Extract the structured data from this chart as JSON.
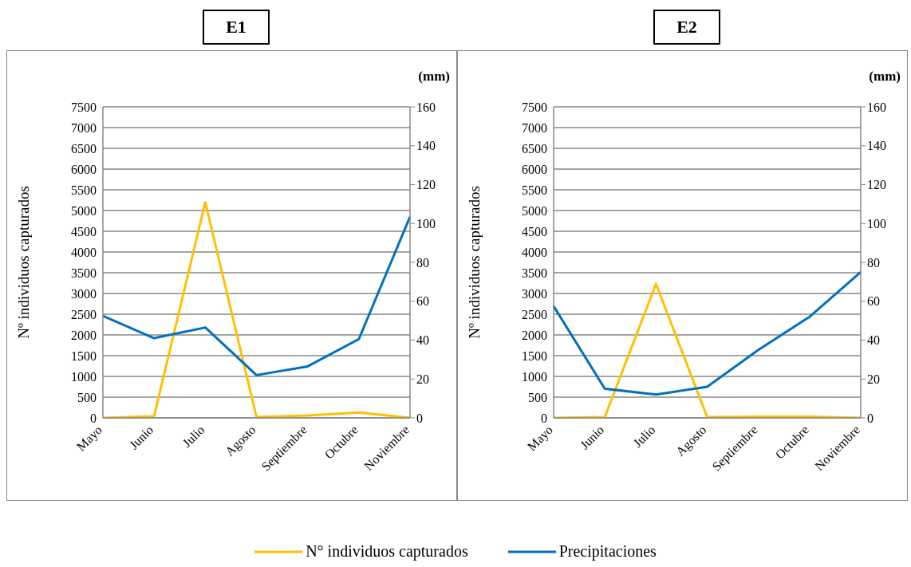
{
  "chart_data": [
    {
      "type": "line",
      "title": "E1",
      "ylabel": "Nº individuos capturados",
      "y2label": "(mm)",
      "categories": [
        "Mayo",
        "Junio",
        "Julio",
        "Agosto",
        "Septiembre",
        "Octubre",
        "Noviembre"
      ],
      "series": [
        {
          "name": "N° individuos capturados",
          "color": "#ffc000",
          "values": [
            0,
            40,
            5200,
            20,
            60,
            130,
            0
          ]
        },
        {
          "name": "Precipitaciones",
          "color": "#0070c0",
          "axis": "y2",
          "values": [
            52.5,
            41,
            46.5,
            22,
            26.5,
            40.5,
            103.5
          ]
        }
      ],
      "ylim": [
        0,
        7500
      ],
      "yticks": [
        0,
        500,
        1000,
        1500,
        2000,
        2500,
        3000,
        3500,
        4000,
        4500,
        5000,
        5500,
        6000,
        6500,
        7000,
        7500
      ],
      "y2lim": [
        0,
        160
      ],
      "y2ticks": [
        0,
        20,
        40,
        60,
        80,
        100,
        120,
        140,
        160
      ],
      "grid": "y",
      "legend": "bottom",
      "marker": "none",
      "line_style": "solid"
    },
    {
      "type": "line",
      "title": "E2",
      "ylabel": "Nº individuos capturados",
      "y2label": "(mm)",
      "categories": [
        "Mayo",
        "Junio",
        "Julio",
        "Agosto",
        "Septiembre",
        "Octubre",
        "Noviembre"
      ],
      "series": [
        {
          "color": "#ffc000",
          "values": [
            0,
            20,
            3230,
            20,
            30,
            30,
            0
          ]
        },
        {
          "color": "#0070c0",
          "axis": "y2",
          "values": [
            57.5,
            15,
            12,
            16,
            35,
            52,
            75
          ]
        }
      ],
      "ylim": [
        0,
        7500
      ],
      "yticks": [
        0,
        500,
        1000,
        1500,
        2000,
        2500,
        3000,
        3500,
        4000,
        4500,
        5000,
        5500,
        6000,
        6500,
        7000,
        7500
      ],
      "y2lim": [
        0,
        160
      ],
      "y2ticks": [
        0,
        20,
        40,
        60,
        80,
        100,
        120,
        140,
        160
      ],
      "grid": "y",
      "marker": "none",
      "line_style": "solid"
    }
  ]
}
